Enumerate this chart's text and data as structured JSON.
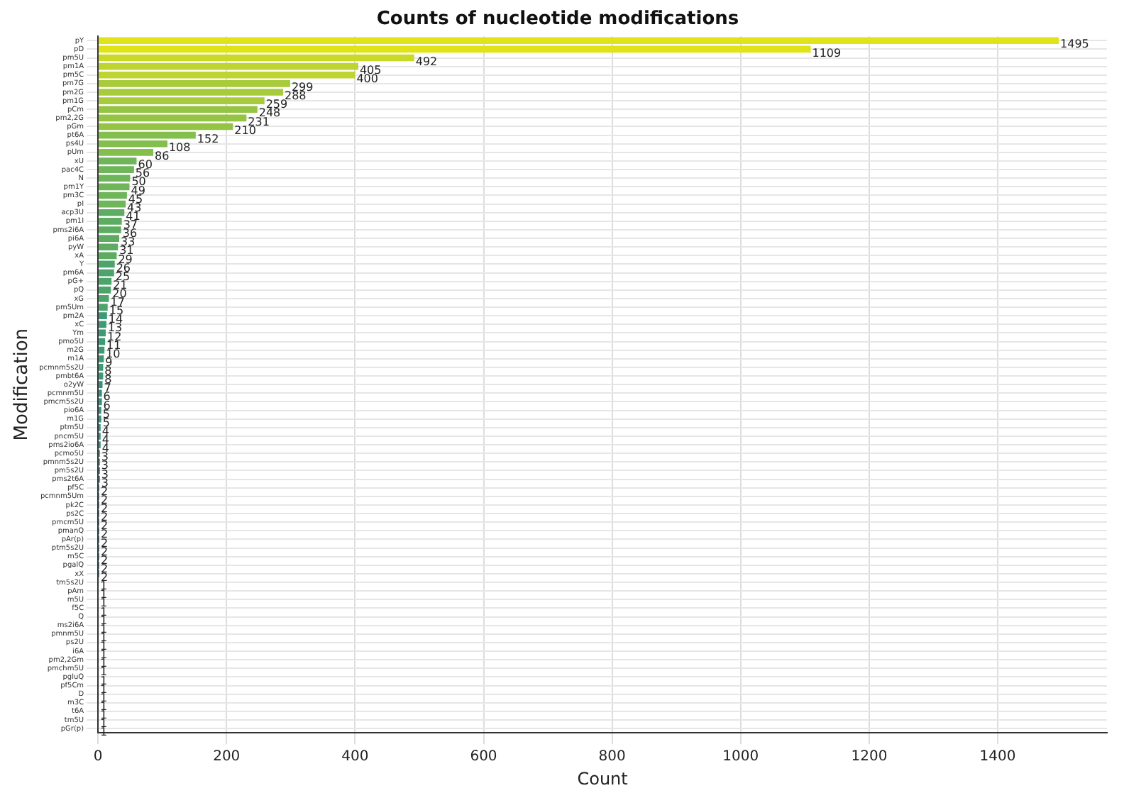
{
  "chart_data": {
    "type": "bar",
    "orientation": "horizontal",
    "title": "Counts of nucleotide modifications",
    "xlabel": "Count",
    "ylabel": "Modification",
    "categories": [
      "pY",
      "pD",
      "pm5U",
      "pm1A",
      "pm5C",
      "pm7G",
      "pm2G",
      "pm1G",
      "pCm",
      "pm2,2G",
      "pGm",
      "pt6A",
      "ps4U",
      "pUm",
      "xU",
      "pac4C",
      "N",
      "pm1Y",
      "pm3C",
      "pI",
      "acp3U",
      "pm1I",
      "pms2i6A",
      "pi6A",
      "pyW",
      "xA",
      "Y",
      "pm6A",
      "pG+",
      "pQ",
      "xG",
      "pm5Um",
      "pm2A",
      "xC",
      "Ym",
      "pmo5U",
      "m2G",
      "m1A",
      "pcmnm5s2U",
      "pmbt6A",
      "o2yW",
      "pcmnm5U",
      "pmcm5s2U",
      "pio6A",
      "m1G",
      "ptm5U",
      "pncm5U",
      "pms2io6A",
      "pcmo5U",
      "pmnm5s2U",
      "pm5s2U",
      "pms2t6A",
      "pf5C",
      "pcmnm5Um",
      "pk2C",
      "ps2C",
      "pmcm5U",
      "pmanQ",
      "pAr(p)",
      "ptm5s2U",
      "m5C",
      "pgalQ",
      "xX",
      "tm5s2U",
      "pAm",
      "m5U",
      "f5C",
      "Q",
      "ms2i6A",
      "pmnm5U",
      "ps2U",
      "i6A",
      "pm2,2Gm",
      "pmchm5U",
      "pgluQ",
      "pf5Cm",
      "D",
      "m3C",
      "t6A",
      "tm5U",
      "pGr(p)"
    ],
    "values": [
      1495,
      1109,
      492,
      405,
      400,
      299,
      288,
      259,
      248,
      231,
      210,
      152,
      108,
      86,
      60,
      56,
      50,
      49,
      45,
      43,
      41,
      37,
      36,
      33,
      31,
      29,
      26,
      25,
      21,
      20,
      17,
      15,
      14,
      13,
      12,
      11,
      10,
      9,
      8,
      8,
      7,
      6,
      6,
      5,
      5,
      4,
      4,
      4,
      3,
      3,
      3,
      3,
      2,
      2,
      2,
      2,
      2,
      2,
      2,
      2,
      2,
      2,
      2,
      1,
      1,
      1,
      1,
      1,
      1,
      1,
      1,
      1,
      1,
      1,
      1,
      1,
      1,
      1,
      1,
      1,
      1
    ],
    "colors": [
      "#dfe318",
      "#dfe318",
      "#c9d92a",
      "#bdd431",
      "#bdd431",
      "#a8cb3c",
      "#a8cb3c",
      "#a8cb3c",
      "#95c445",
      "#95c445",
      "#95c445",
      "#84be4c",
      "#84be4c",
      "#84be4c",
      "#6fb55a",
      "#6fb55a",
      "#6fb55a",
      "#6fb55a",
      "#6fb55a",
      "#6fb55a",
      "#5dac62",
      "#5dac62",
      "#5dac62",
      "#5dac62",
      "#5dac62",
      "#5dac62",
      "#4ca46b",
      "#4ca46b",
      "#4ca46b",
      "#4ca46b",
      "#4ca46b",
      "#4ca46b",
      "#3c9a76",
      "#3c9a76",
      "#3c9a76",
      "#3c9a76",
      "#3c9a76",
      "#3c9a76",
      "#3c9a76",
      "#3c9a76",
      "#31907f",
      "#31907f",
      "#31907f",
      "#31907f",
      "#31907f",
      "#31907f",
      "#31907f",
      "#31907f",
      "#31907f",
      "#31907f",
      "#2b8488",
      "#2b8488",
      "#2b8488",
      "#2b8488",
      "#2b8488",
      "#2b8488",
      "#2b8488",
      "#2b8488",
      "#2b8488",
      "#2b8488",
      "#2b8488",
      "#2b8488",
      "#2b8488",
      "#2b8488",
      "#2b8488",
      "#287a8d",
      "#287a8d",
      "#287a8d",
      "#287a8d",
      "#287a8d",
      "#287a8d",
      "#287a8d",
      "#287a8d",
      "#287a8d",
      "#287a8d",
      "#287a8d",
      "#287a8d",
      "#287a8d",
      "#287a8d",
      "#287a8d",
      "#287a8d"
    ],
    "xlim": [
      0,
      1570
    ],
    "xticks": [
      0,
      200,
      400,
      600,
      800,
      1000,
      1200,
      1400
    ],
    "grid": true,
    "data_labels": true
  }
}
